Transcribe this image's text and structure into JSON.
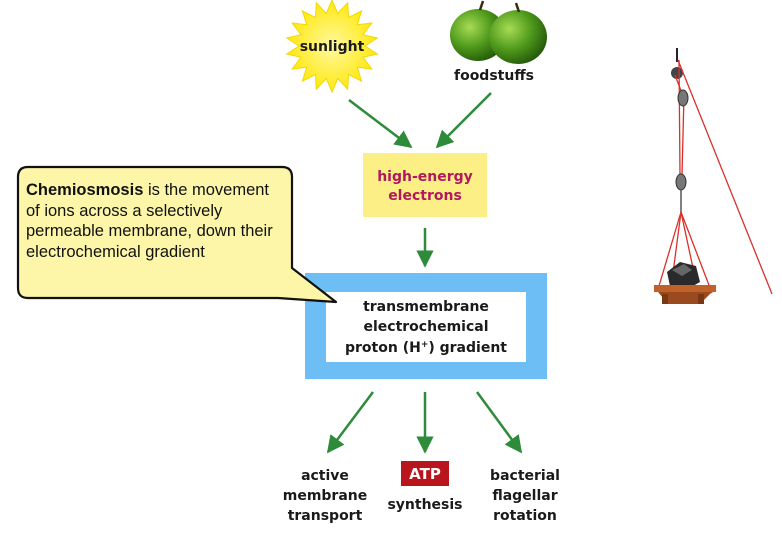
{
  "sources": {
    "sunlight": "sunlight",
    "foodstuffs": "foodstuffs"
  },
  "electrons": {
    "line1": "high-energy",
    "line2": "electrons"
  },
  "gradient": {
    "line1": "transmembrane",
    "line2": "electrochemical",
    "line3_pre": "proton (H",
    "line3_sup": "+",
    "line3_post": ") gradient"
  },
  "outputs": {
    "transport": [
      "active",
      "membrane",
      "transport"
    ],
    "atp_badge": "ATP",
    "atp_label": "synthesis",
    "flagellar": [
      "bacterial",
      "flagellar",
      "rotation"
    ]
  },
  "callout": {
    "term": "Chemiosmosis",
    "definition": " is the movement of ions across a selectively permeable membrane, down their electrochemical gradient"
  },
  "colors": {
    "arrow": "#2e8b3a",
    "electrons_box": "#fcef86",
    "gradient_border": "#6cbef5",
    "callout_fill": "#fdf6a8",
    "atp_badge": "#b8161c",
    "sun": "#ffee00",
    "apple": "#4f9a1c",
    "rope": "#d9302a"
  }
}
